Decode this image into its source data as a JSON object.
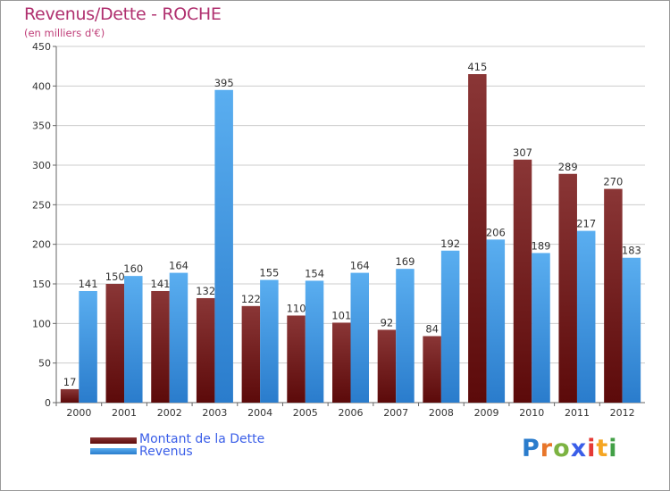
{
  "header": {
    "title": "Revenus/Dette - ROCHE",
    "subtitle": "(en milliers d'€)"
  },
  "colors": {
    "title": "#b0306f",
    "debt_top": "#8a3636",
    "debt_bottom": "#5c0a0a",
    "revenue_top": "#5aaef0",
    "revenue_bottom": "#2a7ccc",
    "grid": "#cccccc",
    "legend_text": "#3a5ee8"
  },
  "legend": {
    "debt_label": "Montant de la Dette",
    "revenue_label": "Revenus"
  },
  "logo": {
    "text": "Proxiti",
    "letter_colors": [
      "#2a7ccc",
      "#e8762a",
      "#7cb342",
      "#3a5ee8",
      "#e53935",
      "#f5a623",
      "#43a047"
    ]
  },
  "chart_data": {
    "type": "bar",
    "title": "Revenus/Dette - ROCHE",
    "ylabel": "(en milliers d'€)",
    "xlabel": "",
    "ylim": [
      0,
      450
    ],
    "yticks": [
      0,
      50,
      100,
      150,
      200,
      250,
      300,
      350,
      400,
      450
    ],
    "grid": true,
    "legend_position": "bottom-left",
    "categories": [
      "2000",
      "2001",
      "2002",
      "2003",
      "2004",
      "2005",
      "2006",
      "2007",
      "2008",
      "2009",
      "2010",
      "2011",
      "2012"
    ],
    "series": [
      {
        "name": "Montant de la Dette",
        "values": [
          17,
          150,
          141,
          132,
          122,
          110,
          101,
          92,
          84,
          415,
          307,
          289,
          270
        ]
      },
      {
        "name": "Revenus",
        "values": [
          141,
          160,
          164,
          395,
          155,
          154,
          164,
          169,
          192,
          206,
          189,
          217,
          183
        ]
      }
    ]
  }
}
